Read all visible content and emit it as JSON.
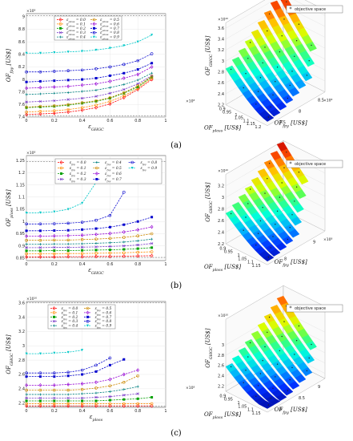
{
  "panel_labels": [
    "(a)",
    "(b)",
    "(c)"
  ],
  "palette": [
    "#ff0000",
    "#ff8c00",
    "#00a000",
    "#7a3cc8",
    "#008080",
    "#cc8800",
    "#9400d3",
    "#0000cd",
    "#1010d0",
    "#00c8c8"
  ],
  "colormap": [
    "#00008b",
    "#0030ff",
    "#00a8ff",
    "#00ffd8",
    "#4cff60",
    "#d8ff00",
    "#ffc000",
    "#ff5000",
    "#c80000"
  ],
  "chart_data": [
    {
      "type": "line",
      "panel": "a-2d",
      "xlabel": "ε_GHGC",
      "ylabel": "OF_fpy [US$]",
      "y_exponent": "×10⁸",
      "xlim": [
        0,
        1
      ],
      "ylim": [
        7.4,
        9.05
      ],
      "xticks": [
        0,
        0.2,
        0.4,
        0.6,
        0.8,
        1
      ],
      "yticks": [
        7.4,
        7.6,
        7.8,
        8,
        8.2,
        8.4,
        8.6,
        8.8,
        9
      ],
      "xticklabels": [
        "0",
        "0.2",
        "0.4",
        "0.6",
        "0.8",
        "1"
      ],
      "yticklabels": [
        "7.4",
        "7.6",
        "7.8",
        "8",
        "8.2",
        "8.4",
        "8.6",
        "8.8",
        "9"
      ],
      "ref_lines": [
        7.42,
        9.02
      ],
      "x": [
        0,
        0.1,
        0.2,
        0.3,
        0.4,
        0.5,
        0.6,
        0.7,
        0.8,
        0.9
      ],
      "series": [
        {
          "name": "ε_ploss = 0.0",
          "values": [
            7.44,
            7.45,
            7.46,
            7.48,
            7.51,
            7.55,
            7.61,
            7.71,
            7.84,
            8.0
          ]
        },
        {
          "name": "ε_ploss = 0.1",
          "values": [
            7.48,
            7.49,
            7.5,
            7.52,
            7.55,
            7.59,
            7.65,
            7.74,
            7.86,
            8.02
          ]
        },
        {
          "name": "ε_ploss = 0.2",
          "values": [
            7.55,
            7.56,
            7.57,
            7.59,
            7.62,
            7.65,
            7.7,
            7.78,
            7.88,
            8.04
          ]
        },
        {
          "name": "ε_ploss = 0.3",
          "values": [
            7.64,
            7.65,
            7.66,
            7.68,
            7.7,
            7.73,
            7.78,
            7.84,
            7.93,
            8.06
          ]
        },
        {
          "name": "ε_ploss = 0.4",
          "values": [
            7.76,
            7.77,
            7.78,
            7.79,
            7.81,
            7.83,
            7.87,
            7.92,
            7.99,
            8.1
          ]
        },
        {
          "name": "ε_ploss = 0.5",
          "values": [
            7.56,
            7.57,
            7.58,
            7.6,
            7.63,
            7.66,
            7.71,
            7.79,
            7.9,
            8.05
          ]
        },
        {
          "name": "ε_ploss = 0.6",
          "values": [
            7.86,
            7.87,
            7.88,
            7.89,
            7.91,
            7.93,
            7.97,
            8.02,
            8.08,
            8.2
          ]
        },
        {
          "name": "ε_ploss = 0.7",
          "values": [
            7.96,
            7.97,
            7.98,
            7.99,
            8.0,
            8.02,
            8.06,
            8.1,
            8.16,
            8.26
          ]
        },
        {
          "name": "ε_ploss = 0.8",
          "values": [
            8.12,
            8.12,
            8.13,
            8.14,
            8.15,
            8.17,
            8.2,
            8.24,
            8.3,
            8.41
          ]
        },
        {
          "name": "ε_ploss = 0.9",
          "values": [
            8.42,
            8.42,
            8.43,
            8.44,
            8.45,
            8.47,
            8.5,
            8.54,
            8.6,
            8.71
          ]
        }
      ]
    },
    {
      "type": "line",
      "panel": "b-2d",
      "xlabel": "ε_GHGC",
      "ylabel": "OF_ploss [US$]",
      "y_exponent": "×10⁸",
      "xlim": [
        0,
        1
      ],
      "ylim": [
        0.84,
        1.27
      ],
      "xticks": [
        0,
        0.2,
        0.4,
        0.6,
        0.8,
        1
      ],
      "yticks": [
        0.85,
        0.9,
        0.95,
        1,
        1.05,
        1.1,
        1.15,
        1.2,
        1.25
      ],
      "xticklabels": [
        "0",
        "0.2",
        "0.4",
        "0.6",
        "0.8",
        "1"
      ],
      "yticklabels": [
        "0.85",
        "0.9",
        "0.95",
        "1",
        "1.05",
        "1.1",
        "1.15",
        "1.2",
        "1.25"
      ],
      "ref_lines": [
        0.853,
        1.245
      ],
      "series": [
        {
          "name": "ε_fpy = 0.0",
          "x": [
            0,
            0.1,
            0.2,
            0.3,
            0.4,
            0.5,
            0.6,
            0.7,
            0.8,
            0.9
          ],
          "values": [
            0.855,
            0.855,
            0.855,
            0.856,
            0.856,
            0.857,
            0.857,
            0.858,
            0.859,
            0.86
          ]
        },
        {
          "name": "ε_fpy = 0.1",
          "x": [
            0,
            0.1,
            0.2,
            0.3,
            0.4,
            0.5,
            0.6,
            0.7,
            0.8,
            0.9
          ],
          "values": [
            0.868,
            0.868,
            0.868,
            0.869,
            0.869,
            0.87,
            0.871,
            0.872,
            0.874,
            0.876
          ]
        },
        {
          "name": "ε_fpy = 0.2",
          "x": [
            0,
            0.1,
            0.2,
            0.3,
            0.4,
            0.5,
            0.6,
            0.7,
            0.8,
            0.9
          ],
          "values": [
            0.88,
            0.88,
            0.881,
            0.881,
            0.882,
            0.883,
            0.884,
            0.886,
            0.889,
            0.893
          ]
        },
        {
          "name": "ε_fpy = 0.3",
          "x": [
            0,
            0.1,
            0.2,
            0.3,
            0.4,
            0.5,
            0.6,
            0.7,
            0.8,
            0.9
          ],
          "values": [
            0.893,
            0.893,
            0.894,
            0.894,
            0.895,
            0.896,
            0.898,
            0.9,
            0.904,
            0.91
          ]
        },
        {
          "name": "ε_fpy = 0.4",
          "x": [
            0,
            0.1,
            0.2,
            0.3,
            0.4,
            0.5,
            0.6,
            0.7,
            0.8,
            0.9
          ],
          "values": [
            0.907,
            0.907,
            0.908,
            0.908,
            0.909,
            0.911,
            0.913,
            0.916,
            0.921,
            0.928
          ]
        },
        {
          "name": "ε_fpy = 0.5",
          "x": [
            0,
            0.1,
            0.2,
            0.3,
            0.4,
            0.5,
            0.6,
            0.7,
            0.8,
            0.9
          ],
          "values": [
            0.923,
            0.923,
            0.924,
            0.924,
            0.926,
            0.928,
            0.931,
            0.935,
            0.941,
            0.95
          ]
        },
        {
          "name": "ε_fpy = 0.6",
          "x": [
            0,
            0.1,
            0.2,
            0.3,
            0.4,
            0.5,
            0.6,
            0.7,
            0.8,
            0.9
          ],
          "values": [
            0.94,
            0.94,
            0.941,
            0.942,
            0.944,
            0.947,
            0.951,
            0.957,
            0.966,
            0.978
          ]
        },
        {
          "name": "ε_fpy = 0.7",
          "x": [
            0,
            0.1,
            0.2,
            0.3,
            0.4,
            0.5,
            0.6,
            0.7,
            0.8,
            0.9
          ],
          "values": [
            0.962,
            0.962,
            0.963,
            0.964,
            0.967,
            0.971,
            0.977,
            0.987,
            1.0,
            1.018
          ]
        },
        {
          "name": "ε_fpy = 0.8",
          "x": [
            0,
            0.1,
            0.2,
            0.3,
            0.4,
            0.5,
            0.6,
            0.7
          ],
          "values": [
            0.99,
            0.99,
            0.991,
            0.993,
            0.997,
            1.005,
            1.025,
            1.12
          ]
        },
        {
          "name": "ε_fpy = 0.9",
          "x": [
            0,
            0.1,
            0.2,
            0.3,
            0.4,
            0.5
          ],
          "values": [
            1.035,
            1.036,
            1.04,
            1.05,
            1.075,
            1.16
          ]
        }
      ]
    },
    {
      "type": "line",
      "panel": "c-2d",
      "xlabel": "ε_ploss",
      "ylabel": "OF_GHGC [US$]",
      "y_exponent": "×10¹⁰",
      "xlim": [
        0,
        1
      ],
      "ylim": [
        2.14,
        3.62
      ],
      "xticks": [
        0,
        0.2,
        0.4,
        0.6,
        0.8,
        1
      ],
      "yticks": [
        2.2,
        2.4,
        2.6,
        2.8,
        3,
        3.2,
        3.4,
        3.6
      ],
      "xticklabels": [
        "0",
        "0.2",
        "0.4",
        "0.6",
        "0.8",
        "1"
      ],
      "yticklabels": [
        "2.2",
        "2.4",
        "2.6",
        "2.8",
        "3",
        "3.2",
        "3.4",
        "3.6"
      ],
      "ref_lines": [
        2.155,
        3.6
      ],
      "series": [
        {
          "name": "ε_fpy = 0.0",
          "x": [
            0,
            0.1,
            0.2,
            0.3,
            0.4,
            0.5,
            0.6,
            0.7,
            0.8,
            0.9
          ],
          "values": [
            2.16,
            2.16,
            2.16,
            2.16,
            2.16,
            2.16,
            2.16,
            2.16,
            2.16,
            2.16
          ]
        },
        {
          "name": "ε_fpy = 0.1",
          "x": [
            0,
            0.1,
            0.2,
            0.3,
            0.4,
            0.5,
            0.6,
            0.7,
            0.8,
            0.9
          ],
          "values": [
            2.19,
            2.19,
            2.19,
            2.19,
            2.19,
            2.19,
            2.19,
            2.19,
            2.19,
            2.19
          ]
        },
        {
          "name": "ε_fpy = 0.2",
          "x": [
            0,
            0.1,
            0.2,
            0.3,
            0.4,
            0.5,
            0.6,
            0.7,
            0.8,
            0.9
          ],
          "values": [
            2.23,
            2.23,
            2.23,
            2.23,
            2.23,
            2.23,
            2.24,
            2.25,
            2.26,
            2.28
          ]
        },
        {
          "name": "ε_fpy = 0.3",
          "x": [
            0,
            0.1,
            0.2,
            0.3,
            0.4,
            0.5,
            0.6,
            0.7,
            0.8
          ],
          "values": [
            2.27,
            2.27,
            2.27,
            2.27,
            2.27,
            2.28,
            2.29,
            2.31,
            2.33
          ]
        },
        {
          "name": "ε_fpy = 0.4",
          "x": [
            0,
            0.1,
            0.2,
            0.3,
            0.4,
            0.5,
            0.6,
            0.7,
            0.8
          ],
          "values": [
            2.32,
            2.32,
            2.32,
            2.32,
            2.33,
            2.34,
            2.36,
            2.39,
            2.43
          ]
        },
        {
          "name": "ε_fpy = 0.5",
          "x": [
            0,
            0.1,
            0.2,
            0.3,
            0.4,
            0.5,
            0.6,
            0.7,
            0.8
          ],
          "values": [
            2.38,
            2.38,
            2.38,
            2.38,
            2.39,
            2.41,
            2.44,
            2.49,
            2.58
          ]
        },
        {
          "name": "ε_fpy = 0.6",
          "x": [
            0,
            0.1,
            0.2,
            0.3,
            0.4,
            0.5,
            0.6,
            0.7,
            0.8
          ],
          "values": [
            2.45,
            2.45,
            2.45,
            2.46,
            2.47,
            2.49,
            2.53,
            2.6,
            2.66
          ]
        },
        {
          "name": "ε_fpy = 0.7",
          "x": [
            0,
            0.1,
            0.2,
            0.3,
            0.4,
            0.5,
            0.6,
            0.7
          ],
          "values": [
            2.57,
            2.57,
            2.57,
            2.58,
            2.6,
            2.64,
            2.73,
            2.81
          ]
        },
        {
          "name": "ε_fpy = 0.8",
          "x": [
            0,
            0.1,
            0.2,
            0.3,
            0.4,
            0.5,
            0.6
          ],
          "values": [
            2.62,
            2.62,
            2.62,
            2.63,
            2.66,
            2.73,
            2.83
          ]
        },
        {
          "name": "ε_fpy = 0.9",
          "x": [
            0,
            0.1,
            0.2,
            0.3,
            0.4
          ],
          "values": [
            2.89,
            2.89,
            2.9,
            2.91,
            2.94
          ]
        }
      ]
    },
    {
      "type": "surface",
      "panel": "a-3d",
      "legend": "objective space",
      "zlabel": "OF_GHGC [US$]",
      "xlabel": "OF_ploss [US$]",
      "ylabel": "OF_fpy [US$]",
      "z_exponent": "×10¹⁰",
      "x_exponent": "×10⁸",
      "y_exponent": "×10⁸",
      "zlim": [
        2.2,
        3.7
      ],
      "xlim": [
        0.85,
        1.25
      ],
      "ylim": [
        7.5,
        8.7
      ],
      "zticks": [
        2.2,
        2.4,
        2.6,
        2.8,
        3,
        3.2,
        3.4,
        3.6
      ],
      "zticklabels": [
        "2.2",
        "2.4",
        "2.6",
        "2.8",
        "3",
        "3.2",
        "3.4",
        "3.6"
      ],
      "xticklabels": [
        "0.9",
        "0.95",
        "1",
        "1.05",
        "1.1",
        "1.15",
        "1.2"
      ],
      "yticklabels": [
        "7.5",
        "8",
        "8.5"
      ]
    },
    {
      "type": "surface",
      "panel": "b-3d",
      "legend": "objective space",
      "zlabel": "OF_GHGC [US$]",
      "xlabel": "OF_ploss [US$]",
      "ylabel": "OF_fpy [US$]",
      "z_exponent": "×10¹⁰",
      "y_exponent": "×10⁸",
      "zlim": [
        2.2,
        3.4
      ],
      "xlim": [
        0.85,
        1.2
      ],
      "ylim": [
        7.4,
        9.1
      ],
      "zticks": [
        2.2,
        2.4,
        2.6,
        2.8,
        3,
        3.2
      ],
      "zticklabels": [
        "2.2",
        "2.4",
        "2.6",
        "2.8",
        "3",
        "3.2"
      ],
      "xticklabels": [
        "0.9",
        "0.95",
        "1",
        "1.05",
        "1.1",
        "1.15"
      ],
      "yticklabels": [
        "8",
        "9"
      ]
    },
    {
      "type": "surface",
      "panel": "c-3d",
      "legend": "objective space",
      "zlabel": "OF_GHGC [US$]",
      "xlabel": "OF_ploss [US$]",
      "ylabel": "OF_fpy [US$]",
      "z_exponent": "×10¹⁰",
      "x_exponent": "×10⁸",
      "zlim": [
        2.1,
        3.5
      ],
      "xlim": [
        0.85,
        1.2
      ],
      "ylim": [
        7.4,
        9.1
      ],
      "zticks": [
        2.2,
        2.4,
        2.6,
        2.8,
        3
      ],
      "zticklabels": [
        "2.2",
        "2.4",
        "2.6",
        "2.8",
        "3"
      ],
      "xticklabels": [
        "0.9",
        "0.95",
        "1",
        "1.05",
        "1.1",
        "1.15"
      ],
      "yticklabels": [
        "8",
        "8.5",
        "9"
      ]
    }
  ]
}
